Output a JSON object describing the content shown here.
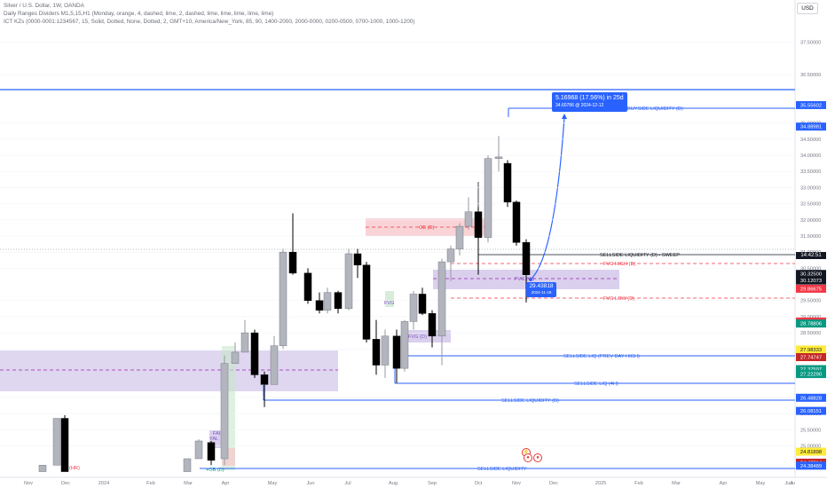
{
  "header": {
    "symbol_line": "Silver / U.S. Dollar, 1W, OANDA",
    "indicator1": "Daily Ranges Dividers M1,5,15,H1 (Monday, orange, 4, dashed, lime, 2, dashed, lime, lime, lime, lime, lime)",
    "indicator2": "ICT KZs (0000-0001:1234567, 15, Solid, Dotted, None, Dotted, 2, GMT+10, America/New_York, 85, 90, 1400-2000, 2000-0000, 0200-0500, 0700-1000, 1000-1200)"
  },
  "currency_button": "USD",
  "price_axis": {
    "min": 24.05,
    "max": 37.85,
    "labels": [
      "37.50000",
      "36.50000",
      "35.00000",
      "34.50000",
      "34.00000",
      "33.50000",
      "33.00000",
      "32.50000",
      "32.00000",
      "31.50000",
      "31.00000",
      "30.50000",
      "29.50000",
      "29.00000",
      "28.50000",
      "28.00000",
      "26.50000",
      "26.00000",
      "25.50000",
      "25.00000"
    ],
    "values": [
      37.5,
      36.5,
      35.0,
      34.5,
      34.0,
      33.5,
      33.0,
      32.5,
      32.0,
      31.5,
      31.0,
      30.5,
      29.5,
      29.0,
      28.5,
      28.0,
      26.5,
      26.0,
      25.5,
      25.0
    ]
  },
  "price_tags": [
    {
      "text": "35.55602",
      "value": 35.55602,
      "bg": "#2962ff",
      "fg": "#ffffff"
    },
    {
      "text": "34.88981",
      "value": 34.88981,
      "bg": "#2962ff",
      "fg": "#ffffff"
    },
    {
      "text": "30.32500",
      "value": 30.325,
      "bg": "#131722",
      "fg": "#ffffff"
    },
    {
      "text": "30.12073",
      "value": 30.12073,
      "bg": "#131722",
      "fg": "#ffffff"
    },
    {
      "text": "29.86675",
      "value": 29.86675,
      "bg": "#f23645",
      "fg": "#ffffff"
    },
    {
      "text": "28.85178",
      "value": 28.85178,
      "bg": "#f23645",
      "fg": "#ffffff"
    },
    {
      "text": "28.78806",
      "value": 28.78806,
      "bg": "#089981",
      "fg": "#ffffff"
    },
    {
      "text": "27.98333",
      "value": 27.98333,
      "bg": "#ffeb3b",
      "fg": "#131722"
    },
    {
      "text": "27.74747",
      "value": 27.74747,
      "bg": "#c62828",
      "fg": "#ffffff"
    },
    {
      "text": "27.37597",
      "value": 27.37597,
      "bg": "#089981",
      "fg": "#ffffff"
    },
    {
      "text": "27.22290",
      "value": 27.2229,
      "bg": "#089981",
      "fg": "#ffffff"
    },
    {
      "text": "26.48828",
      "value": 26.48828,
      "bg": "#2962ff",
      "fg": "#ffffff"
    },
    {
      "text": "26.08151",
      "value": 26.08151,
      "bg": "#2962ff",
      "fg": "#ffffff"
    },
    {
      "text": "24.81898",
      "value": 24.81898,
      "bg": "#ffeb3b",
      "fg": "#131722"
    },
    {
      "text": "24.47814",
      "value": 24.47814,
      "bg": "#c62828",
      "fg": "#ffffff"
    },
    {
      "text": "24.38489",
      "value": 24.38489,
      "bg": "#2962ff",
      "fg": "#ffffff"
    }
  ],
  "countdown": "14:42:51",
  "time_axis": [
    "Nov",
    "Dec",
    "2024",
    "Feb",
    "Mar",
    "Apr",
    "May",
    "Jun",
    "Jul",
    "Aug",
    "Sep",
    "Oct",
    "Nov",
    "Dec",
    "2025",
    "Feb",
    "Mar",
    "Apr",
    "May",
    "Jun",
    "Ju"
  ],
  "colors": {
    "bull": "#b2b5be",
    "bear": "#000000",
    "liquidity": "#2962ff",
    "fvg_zone": "#d1c4e9",
    "ob_zone": "#f8c8cc",
    "fvg_line": "#f23645",
    "grid": "#f0f3fa"
  },
  "annotations": {
    "buyside": "BUYSIDE LIQUIDITY (D)",
    "sellside_sweep": "SELLSIDE LIQUIDITY (D) - SWEEP",
    "fvg_high": "FVG HIGH (D)",
    "fvg_w": "FVG (W)",
    "fvg_low": "FVG LOW (D)",
    "ob": "OB (D)",
    "fvg_d": "FVG (D)",
    "sellside_prev": "SELLSIDE LIQ (PREV DAY HIGH)",
    "sellside_4h": "SELLSIDE LIQ (4H)",
    "sellside_d": "SELLSIDE LIQUIDITY (D)",
    "sellside_bottom": "SELLSIDE LIQUIDITY",
    "ob_small": "+OB (D)",
    "fvg_left": "FAI",
    "small1": "(HR)",
    "small2": "FVG",
    "small3": "YAL"
  },
  "measure": {
    "line1": "5.16968 (17.56%) in 25d",
    "line2": "34.60786 @ 2024-12-12"
  },
  "low_tag": {
    "price": "29.43818",
    "date": "2024-11-18"
  },
  "candles": [
    [
      48,
      24.2,
      24.4,
      24.2,
      24.4
    ],
    [
      64,
      24.4,
      25.85,
      24.4,
      25.85
    ],
    [
      73,
      25.85,
      24.2,
      24.2,
      25.95
    ],
    [
      211,
      24.2,
      24.6,
      24.2,
      24.6
    ],
    [
      224,
      24.6,
      25.15,
      24.6,
      25.2
    ],
    [
      238,
      25.1,
      24.55,
      24.4,
      25.15
    ],
    [
      253,
      24.6,
      27.55,
      24.4,
      27.8
    ],
    [
      265,
      27.55,
      27.9,
      27.55,
      28.2
    ],
    [
      276,
      27.9,
      28.5,
      27.9,
      28.9
    ],
    [
      287,
      28.5,
      27.2,
      27.1,
      28.6
    ],
    [
      298,
      27.2,
      26.9,
      26.2,
      27.3
    ],
    [
      309,
      26.9,
      28.1,
      26.9,
      28.4
    ],
    [
      319,
      28.1,
      31.0,
      28.0,
      31.1
    ],
    [
      330,
      31.0,
      30.35,
      30.3,
      32.2
    ],
    [
      347,
      30.35,
      29.5,
      29.4,
      30.5
    ],
    [
      360,
      29.5,
      29.2,
      29.1,
      29.75
    ],
    [
      369,
      29.2,
      29.75,
      29.1,
      29.9
    ],
    [
      381,
      29.75,
      29.25,
      29.1,
      29.8
    ],
    [
      393,
      29.25,
      30.95,
      29.2,
      31.1
    ],
    [
      403,
      30.95,
      30.6,
      30.2,
      31.1
    ],
    [
      413,
      30.6,
      28.3,
      28.2,
      30.7
    ],
    [
      424,
      28.3,
      27.5,
      27.2,
      28.9
    ],
    [
      434,
      27.5,
      28.4,
      27.1,
      28.6
    ],
    [
      447,
      28.4,
      27.4,
      26.95,
      28.6
    ],
    [
      456,
      27.4,
      28.85,
      27.3,
      28.9
    ],
    [
      466,
      28.85,
      29.7,
      28.6,
      29.8
    ],
    [
      476,
      29.7,
      29.1,
      29.05,
      29.9
    ],
    [
      487,
      29.1,
      28.4,
      28.05,
      29.2
    ],
    [
      498,
      28.4,
      30.7,
      27.5,
      30.8
    ],
    [
      508,
      30.7,
      31.1,
      30.1,
      31.2
    ],
    [
      518,
      31.1,
      31.8,
      30.9,
      31.9
    ],
    [
      528,
      31.8,
      32.25,
      31.7,
      32.7
    ],
    [
      539,
      32.25,
      31.45,
      30.3,
      32.4
    ],
    [
      550,
      31.45,
      33.9,
      31.3,
      34.0
    ],
    [
      562,
      33.9,
      33.95,
      33.5,
      34.6
    ],
    [
      572,
      33.75,
      32.55,
      32.4,
      33.85
    ],
    [
      582,
      32.55,
      31.3,
      31.2,
      32.6
    ],
    [
      593,
      31.3,
      30.3,
      29.44,
      31.4
    ]
  ]
}
